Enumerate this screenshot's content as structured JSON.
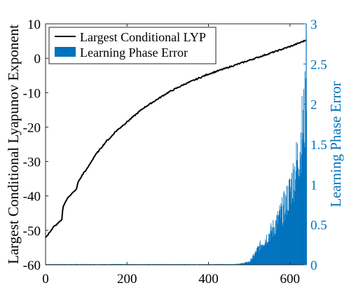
{
  "chart_data": {
    "type": "line+bar",
    "title": "",
    "xlabel": "",
    "ylabel_left": "Largest Conditional Lyapunov Exponent",
    "ylabel_right": "Learning Phase Error",
    "xlim": [
      0,
      640
    ],
    "ylim_left": [
      -60,
      10
    ],
    "ylim_right": [
      0,
      3
    ],
    "x_ticks": [
      0,
      200,
      400,
      600
    ],
    "y_ticks_left": [
      10,
      0,
      -10,
      -20,
      -30,
      -40,
      -50,
      -60
    ],
    "y_ticks_right": [
      3,
      2.5,
      2,
      1.5,
      1,
      0.5,
      0
    ],
    "grid": false,
    "legend_position": "top-left",
    "colors": {
      "line": "#000000",
      "bars": "#0072BD",
      "right_axis": "#0072BD"
    },
    "series": [
      {
        "name": "Largest Conditional LYP",
        "type": "line",
        "axis": "left",
        "x": [
          0,
          5,
          10,
          15,
          20,
          25,
          30,
          35,
          40,
          42,
          45,
          50,
          55,
          60,
          65,
          70,
          75,
          78,
          80,
          85,
          90,
          95,
          100,
          110,
          120,
          130,
          140,
          150,
          160,
          170,
          180,
          190,
          200,
          210,
          220,
          230,
          240,
          260,
          280,
          300,
          320,
          340,
          360,
          380,
          400,
          420,
          440,
          460,
          480,
          500,
          520,
          540,
          560,
          580,
          600,
          620,
          640
        ],
        "y": [
          -52,
          -51.5,
          -50.5,
          -49.8,
          -49,
          -48.5,
          -48,
          -47.5,
          -47,
          -44,
          -42.5,
          -41.5,
          -40.5,
          -39.8,
          -39.2,
          -38.8,
          -38.2,
          -37,
          -36,
          -35,
          -34,
          -33,
          -32.5,
          -30.5,
          -28.5,
          -27,
          -25.5,
          -24,
          -23,
          -21.5,
          -20.5,
          -19.5,
          -18.5,
          -17.5,
          -16.5,
          -15.5,
          -14.5,
          -13,
          -11.5,
          -10,
          -8.8,
          -7.6,
          -6.6,
          -5.6,
          -4.6,
          -3.8,
          -3,
          -2.2,
          -1.4,
          -0.6,
          0.2,
          1,
          1.8,
          2.6,
          3.4,
          4.3,
          5.3
        ]
      },
      {
        "name": "Learning Phase Error",
        "type": "bar",
        "axis": "right",
        "x": [
          0,
          100,
          200,
          300,
          400,
          460,
          480,
          500,
          510,
          520,
          530,
          540,
          550,
          560,
          570,
          580,
          590,
          600,
          610,
          620,
          630,
          640
        ],
        "y": [
          0.01,
          0.01,
          0.01,
          0.01,
          0.01,
          0.01,
          0.02,
          0.05,
          0.14,
          0.25,
          0.34,
          0.42,
          0.5,
          0.6,
          0.72,
          0.85,
          1.0,
          1.2,
          1.45,
          1.75,
          2.2,
          2.6
        ]
      }
    ]
  }
}
